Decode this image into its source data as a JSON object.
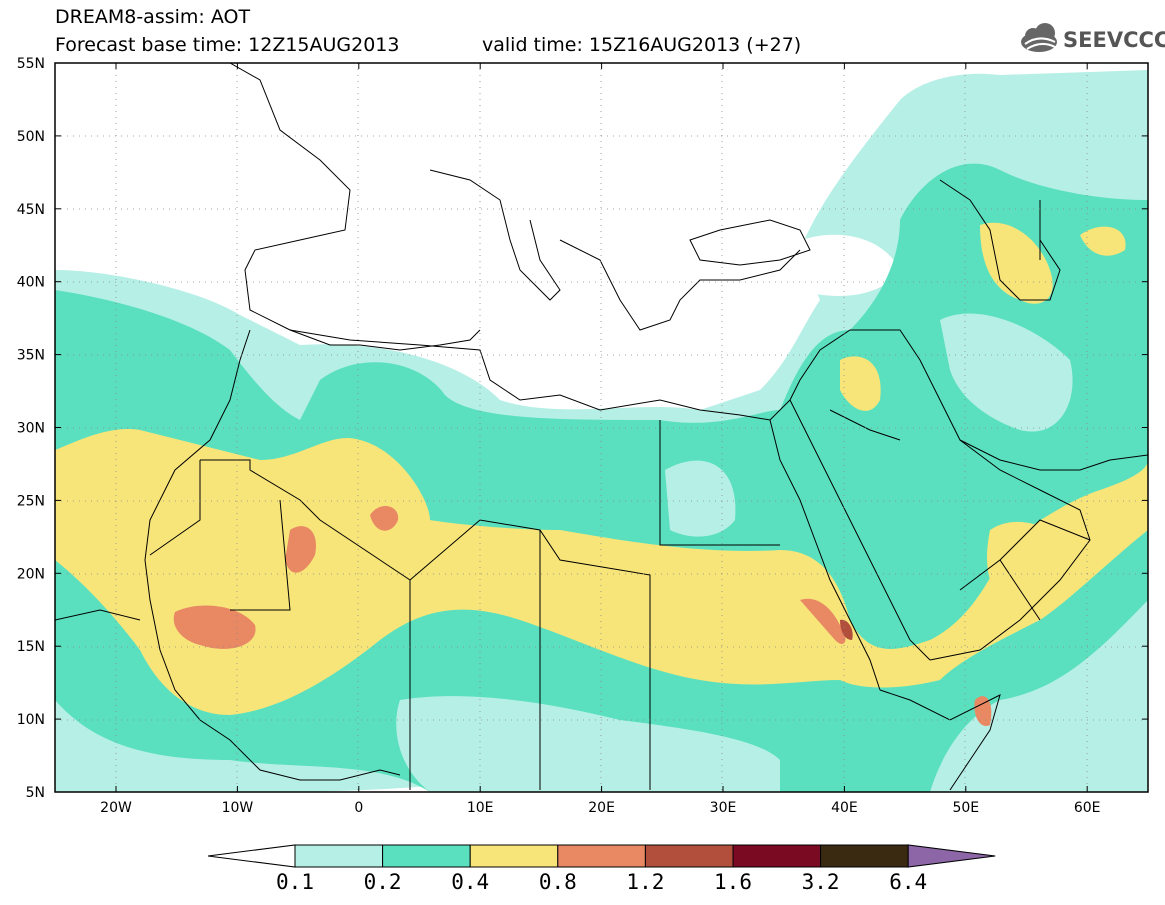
{
  "title": {
    "line1": "DREAM8-assim: AOT",
    "line2": "Forecast base time: 12Z15AUG2013",
    "valid": "valid time: 15Z16AUG2013 (+27)"
  },
  "logo": {
    "text": "SEEVCCC",
    "icon": "cloud-icon"
  },
  "axes": {
    "lat_labels": [
      "55N",
      "50N",
      "45N",
      "40N",
      "35N",
      "30N",
      "25N",
      "20N",
      "15N",
      "10N",
      "5N"
    ],
    "lon_labels": [
      "20W",
      "10W",
      "0",
      "10E",
      "20E",
      "30E",
      "40E",
      "50E",
      "60E"
    ]
  },
  "colorbar": {
    "labels": [
      "0.1",
      "0.2",
      "0.4",
      "0.8",
      "1.2",
      "1.6",
      "3.2",
      "6.4"
    ],
    "colors": [
      "#ffffff",
      "#b6efe6",
      "#5ae0bf",
      "#f7e57a",
      "#e88964",
      "#b24f3c",
      "#7a0a22",
      "#3b2a12",
      "#8c66a6"
    ]
  },
  "colors": {
    "c01": "#b6efe6",
    "c02": "#5ae0bf",
    "c04": "#f7e57a",
    "c08": "#e88964",
    "c12": "#b24f3c"
  }
}
